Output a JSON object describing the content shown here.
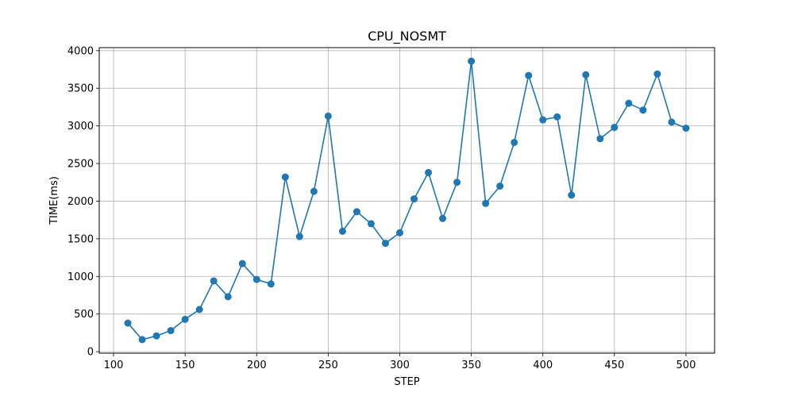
{
  "chart_data": {
    "type": "line",
    "title": "CPU_NOSMT",
    "xlabel": "STEP",
    "ylabel": "TIME(ms)",
    "xlim": [
      90,
      520
    ],
    "ylim": [
      -20,
      4040
    ],
    "xticks": [
      100,
      150,
      200,
      250,
      300,
      350,
      400,
      450,
      500
    ],
    "yticks": [
      0,
      500,
      1000,
      1500,
      2000,
      2500,
      3000,
      3500,
      4000
    ],
    "grid": true,
    "line_color": "#1f77b4",
    "x": [
      110,
      120,
      130,
      140,
      150,
      160,
      170,
      180,
      190,
      200,
      210,
      220,
      230,
      240,
      250,
      260,
      270,
      280,
      290,
      300,
      310,
      320,
      330,
      340,
      350,
      360,
      370,
      380,
      390,
      400,
      410,
      420,
      430,
      440,
      450,
      460,
      470,
      480,
      490,
      500
    ],
    "series": [
      {
        "values": [
          380,
          160,
          210,
          280,
          430,
          560,
          940,
          730,
          1170,
          960,
          900,
          2320,
          1530,
          2130,
          3130,
          1600,
          1860,
          1700,
          1440,
          1580,
          2030,
          2380,
          1770,
          2250,
          3860,
          1970,
          2200,
          2780,
          3670,
          3080,
          3120,
          2080,
          3680,
          2830,
          2980,
          3300,
          3210,
          3690,
          3050,
          2970
        ]
      }
    ]
  }
}
